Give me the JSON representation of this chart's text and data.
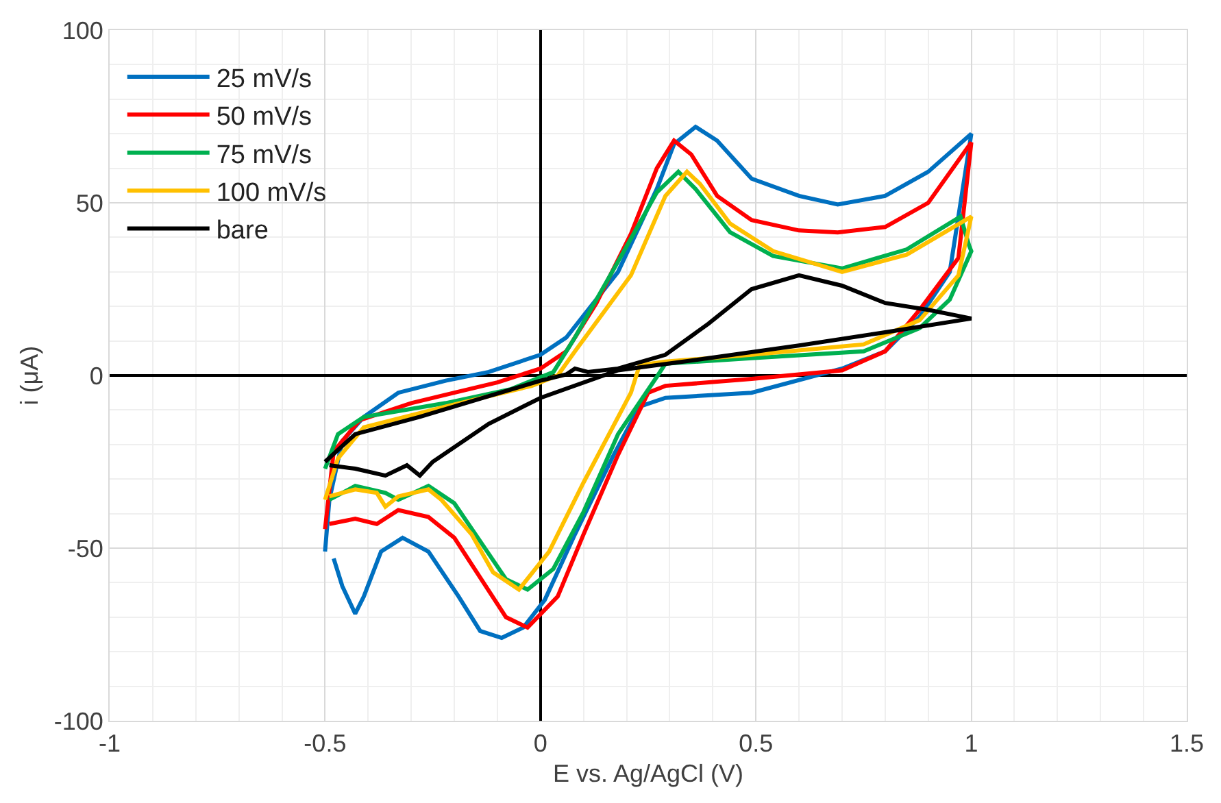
{
  "chart_data": {
    "type": "line",
    "xlabel": "E vs. Ag/AgCl (V)",
    "ylabel": "i (μA)",
    "xlim": [
      -1,
      1.5
    ],
    "ylim": [
      -100,
      100
    ],
    "xticks": [
      -1,
      -0.5,
      0,
      0.5,
      1,
      1.5
    ],
    "yticks": [
      -100,
      -50,
      0,
      50,
      100
    ],
    "grid": true,
    "legend": "top left",
    "marker": "none",
    "line_style": "solid",
    "series": [
      {
        "name": "25 mV/s",
        "color": "#0070c0",
        "x": [
          -0.5,
          -0.49,
          -0.46,
          -0.41,
          -0.33,
          -0.22,
          -0.12,
          0,
          0.06,
          0.18,
          0.27,
          0.31,
          0.36,
          0.41,
          0.49,
          0.6,
          0.69,
          0.8,
          0.9,
          1.0,
          0.95,
          0.88,
          0.8,
          0.7,
          0.49,
          0.29,
          0.23,
          0.17,
          0.08,
          0.01,
          -0.04,
          -0.09,
          -0.14,
          -0.19,
          -0.26,
          -0.32,
          -0.37,
          -0.41,
          -0.43,
          -0.46,
          -0.48
        ],
        "values": [
          -51,
          -36,
          -19,
          -12,
          -5,
          -1.5,
          1,
          6,
          11,
          30,
          54,
          67,
          72,
          68,
          57,
          52,
          49.5,
          52,
          59,
          70,
          30,
          17,
          7,
          2,
          -5,
          -6.5,
          -9,
          -23,
          -46,
          -65,
          -73,
          -76,
          -74,
          -64,
          -51,
          -47,
          -51,
          -64,
          -69,
          -61,
          -53
        ]
      },
      {
        "name": "50 mV/s",
        "color": "#ff0000",
        "x": [
          -0.5,
          -0.48,
          -0.42,
          -0.3,
          -0.2,
          -0.1,
          0,
          0.06,
          0.13,
          0.21,
          0.27,
          0.31,
          0.35,
          0.41,
          0.49,
          0.6,
          0.69,
          0.8,
          0.9,
          1.0,
          0.97,
          0.88,
          0.8,
          0.7,
          0.49,
          0.29,
          0.25,
          0.18,
          0.1,
          0.04,
          -0.03,
          -0.08,
          -0.14,
          -0.2,
          -0.26,
          -0.33,
          -0.38,
          -0.43,
          -0.49
        ],
        "values": [
          -44.5,
          -22,
          -13,
          -8,
          -5,
          -2,
          2,
          7,
          21,
          41,
          60,
          68,
          64,
          52,
          45,
          42,
          41.4,
          43,
          50,
          67.5,
          34,
          19,
          7,
          1.5,
          -1,
          -3,
          -5,
          -23,
          -46,
          -64,
          -73,
          -70,
          -58.5,
          -47,
          -41,
          -39,
          -43,
          -41.5,
          -43
        ]
      },
      {
        "name": "75 mV/s",
        "color": "#00b050",
        "x": [
          -0.5,
          -0.47,
          -0.41,
          -0.22,
          -0.07,
          0.03,
          0.08,
          0.18,
          0.27,
          0.32,
          0.36,
          0.44,
          0.54,
          0.7,
          0.85,
          0.975,
          0.995,
          1.0,
          0.95,
          0.88,
          0.75,
          0.49,
          0.29,
          0.27,
          0.18,
          0.1,
          0.03,
          -0.03,
          -0.08,
          -0.14,
          -0.2,
          -0.26,
          -0.33,
          -0.36,
          -0.43,
          -0.49
        ],
        "values": [
          -27,
          -17,
          -12,
          -8,
          -4,
          1,
          11,
          33,
          53,
          59,
          54,
          41.5,
          34.6,
          31,
          36.5,
          46,
          37.6,
          36,
          22,
          13.7,
          7,
          5,
          3.4,
          -0.4,
          -17,
          -39.5,
          -56,
          -62,
          -59,
          -48,
          -37,
          -32,
          -36,
          -34,
          -32,
          -36
        ]
      },
      {
        "name": "100 mV/s",
        "color": "#ffc000",
        "x": [
          -0.5,
          -0.47,
          -0.41,
          -0.22,
          -0.02,
          0.04,
          0.08,
          0.21,
          0.29,
          0.34,
          0.37,
          0.44,
          0.54,
          0.7,
          0.85,
          1.0,
          0.97,
          0.88,
          0.75,
          0.49,
          0.29,
          0.23,
          0.21,
          0.1,
          0.02,
          -0.05,
          -0.11,
          -0.16,
          -0.23,
          -0.26,
          -0.33,
          -0.36,
          -0.38,
          -0.43,
          -0.49
        ],
        "values": [
          -36,
          -24,
          -15,
          -9,
          -3,
          0,
          7,
          29,
          52,
          59,
          55.5,
          44,
          36,
          30,
          35,
          46,
          29,
          16,
          9,
          6,
          4,
          3,
          -5,
          -31,
          -51,
          -62,
          -57,
          -46,
          -36,
          -33,
          -35,
          -38,
          -34,
          -33,
          -35
        ]
      },
      {
        "name": "bare",
        "color": "#000000",
        "x": [
          -0.5,
          -0.43,
          -0.28,
          -0.12,
          0,
          0.06,
          0.08,
          0.11,
          0.18,
          0.29,
          0.39,
          0.49,
          0.6,
          0.7,
          0.8,
          0.9,
          1.0,
          0.8,
          0.6,
          0.39,
          0.18,
          0,
          -0.12,
          -0.25,
          -0.28,
          -0.31,
          -0.36,
          -0.43,
          -0.49
        ],
        "values": [
          -25,
          -17,
          -12,
          -6,
          -1.5,
          0.3,
          2,
          1,
          2,
          6,
          15,
          25,
          29,
          26,
          21,
          19,
          16.5,
          12.5,
          8.7,
          5,
          1.5,
          -6.5,
          -14,
          -25,
          -29,
          -26,
          -29,
          -27,
          -26
        ]
      }
    ]
  }
}
